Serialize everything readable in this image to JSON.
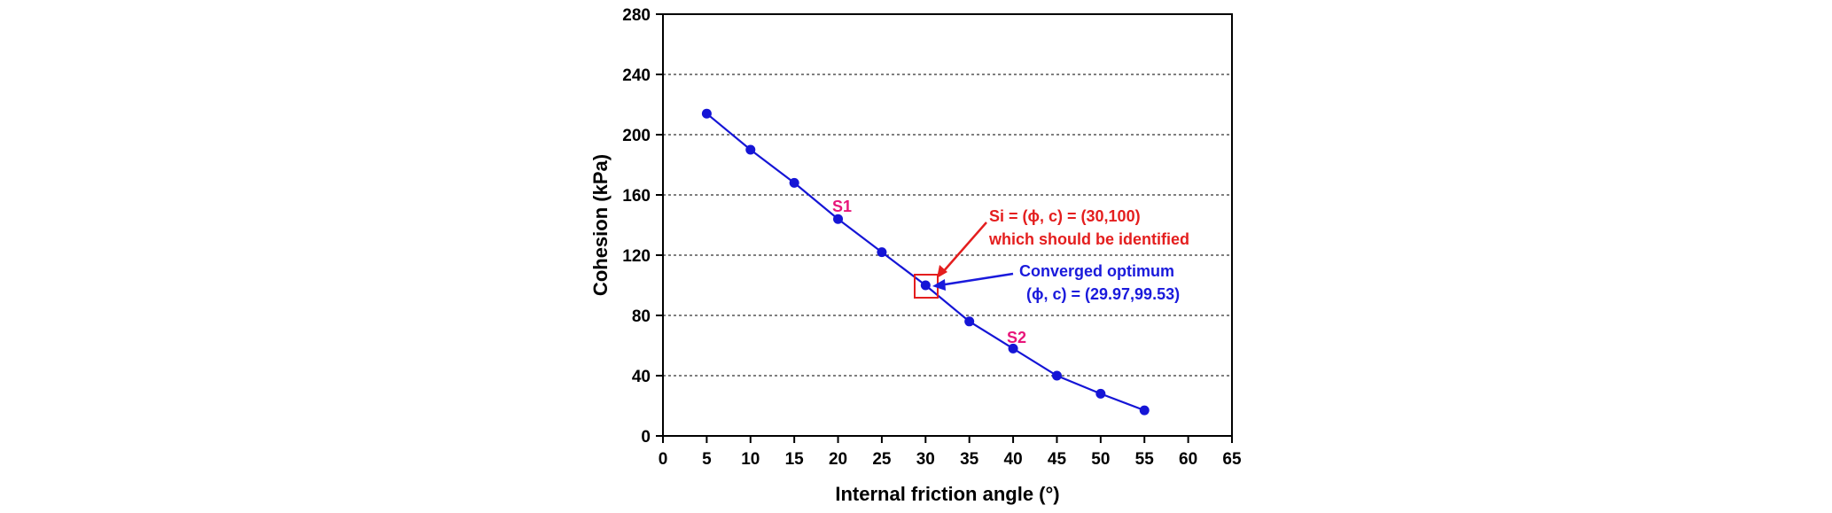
{
  "chart_data": {
    "type": "line",
    "title": "",
    "xlabel": "Internal friction angle (°)",
    "ylabel": "Cohesion (kPa)",
    "xlim": [
      0,
      65
    ],
    "ylim": [
      0,
      280
    ],
    "x_ticks": [
      "0",
      "5",
      "10",
      "15",
      "20",
      "25",
      "30",
      "35",
      "40",
      "45",
      "50",
      "55",
      "60",
      "65"
    ],
    "y_ticks": [
      "0",
      "40",
      "80",
      "120",
      "160",
      "200",
      "240",
      "280"
    ],
    "grid": "horizontal dotted",
    "series": [
      {
        "color": "#1515d6",
        "x": [
          5,
          10,
          15,
          20,
          25,
          30,
          35,
          40,
          45,
          50,
          55
        ],
        "y": [
          214,
          190,
          168,
          144,
          122,
          100,
          76,
          58,
          40,
          28,
          17
        ]
      }
    ],
    "annotations": {
      "s1": {
        "text": "S1",
        "x": 20,
        "y": 144,
        "color": "#e8157a"
      },
      "s2": {
        "text": "S2",
        "x": 40,
        "y": 58,
        "color": "#e8157a"
      },
      "target": {
        "line1": "Si = (ϕ, c) = (30,100)",
        "line2": "which should be identified",
        "x": 30,
        "y": 100,
        "color": "#e41e1e"
      },
      "optimum": {
        "line1": "Converged optimum",
        "line2": "(ϕ, c) = (29.97,99.53)",
        "x": 29.97,
        "y": 99.53,
        "color": "#1a1adc"
      }
    }
  }
}
